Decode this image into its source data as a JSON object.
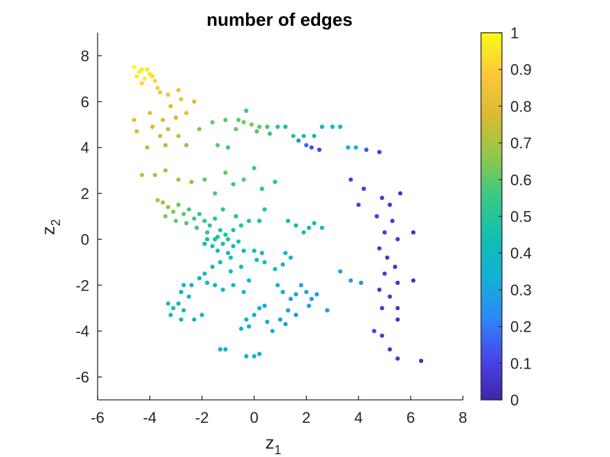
{
  "chart_data": {
    "type": "scatter",
    "title": "number of edges",
    "xlabel": {
      "main": "z",
      "sub": "1"
    },
    "ylabel": {
      "main": "z",
      "sub": "2"
    },
    "xlim": [
      -6,
      8
    ],
    "ylim": [
      -7,
      9
    ],
    "xticks": [
      -6,
      -4,
      -2,
      0,
      2,
      4,
      6,
      8
    ],
    "yticks": [
      -6,
      -4,
      -2,
      0,
      2,
      4,
      6,
      8
    ],
    "xtick_labels": [
      "-6",
      "-4",
      "-2",
      "0",
      "2",
      "4",
      "6",
      "8"
    ],
    "ytick_labels": [
      "-6",
      "-4",
      "-2",
      "0",
      "2",
      "4",
      "6",
      "8"
    ],
    "grid": false,
    "colorbar": {
      "colormap": "parula",
      "range": [
        0,
        1
      ],
      "ticks": [
        0,
        0.1,
        0.2,
        0.3,
        0.4,
        0.5,
        0.6,
        0.7,
        0.8,
        0.9,
        1
      ],
      "tick_labels": [
        "0",
        "0.1",
        "0.2",
        "0.3",
        "0.4",
        "0.5",
        "0.6",
        "0.7",
        "0.8",
        "0.9",
        "1"
      ],
      "stops": [
        "#3e26a8",
        "#4745e8",
        "#2e87f7",
        "#12b1d5",
        "#12bfb0",
        "#39c982",
        "#92c84a",
        "#dbba32",
        "#fcc938",
        "#f9fb15"
      ]
    },
    "points": [
      [
        -4.6,
        7.5,
        1.0
      ],
      [
        -4.4,
        7.3,
        0.99
      ],
      [
        -4.3,
        7.4,
        0.98
      ],
      [
        -4.2,
        7.0,
        0.97
      ],
      [
        -4.1,
        7.4,
        0.96
      ],
      [
        -4.0,
        7.2,
        0.95
      ],
      [
        -3.9,
        7.1,
        0.94
      ],
      [
        -4.5,
        7.1,
        0.97
      ],
      [
        -4.3,
        6.8,
        0.93
      ],
      [
        -3.8,
        6.9,
        0.92
      ],
      [
        -3.7,
        6.6,
        0.9
      ],
      [
        -3.6,
        6.4,
        0.87
      ],
      [
        -3.3,
        6.3,
        0.85
      ],
      [
        -2.9,
        6.5,
        0.84
      ],
      [
        -2.8,
        6.1,
        0.83
      ],
      [
        -3.2,
        5.8,
        0.8
      ],
      [
        -2.6,
        5.5,
        0.8
      ],
      [
        -2.3,
        6.0,
        0.8
      ],
      [
        -3.0,
        5.3,
        0.78
      ],
      [
        -3.5,
        5.2,
        0.77
      ],
      [
        -4.0,
        5.5,
        0.8
      ],
      [
        -4.6,
        5.2,
        0.8
      ],
      [
        -4.5,
        4.7,
        0.78
      ],
      [
        -3.9,
        4.9,
        0.77
      ],
      [
        -3.6,
        4.5,
        0.75
      ],
      [
        -3.3,
        4.8,
        0.74
      ],
      [
        -2.9,
        4.5,
        0.72
      ],
      [
        -4.1,
        4.0,
        0.73
      ],
      [
        -3.4,
        4.1,
        0.7
      ],
      [
        -2.6,
        4.1,
        0.66
      ],
      [
        -2.1,
        4.8,
        0.64
      ],
      [
        -1.6,
        5.1,
        0.62
      ],
      [
        -1.1,
        5.2,
        0.58
      ],
      [
        -1.4,
        4.1,
        0.6
      ],
      [
        -1.0,
        4.0,
        0.55
      ],
      [
        -0.6,
        5.2,
        0.6
      ],
      [
        -0.4,
        5.1,
        0.62
      ],
      [
        -0.1,
        5.0,
        0.64
      ],
      [
        0.2,
        4.9,
        0.6
      ],
      [
        0.5,
        4.9,
        0.56
      ],
      [
        0.9,
        4.9,
        0.5
      ],
      [
        1.2,
        4.9,
        0.46
      ],
      [
        -0.3,
        5.6,
        0.55
      ],
      [
        -0.7,
        4.8,
        0.62
      ],
      [
        0.1,
        4.7,
        0.58
      ],
      [
        0.6,
        4.6,
        0.55
      ],
      [
        1.5,
        4.5,
        0.5
      ],
      [
        1.9,
        4.5,
        0.46
      ],
      [
        2.3,
        4.5,
        0.44
      ],
      [
        2.6,
        4.9,
        0.4
      ],
      [
        3.0,
        4.9,
        0.4
      ],
      [
        3.3,
        4.9,
        0.4
      ],
      [
        1.7,
        4.3,
        0.22
      ],
      [
        2.0,
        4.1,
        0.17
      ],
      [
        2.2,
        4.0,
        0.13
      ],
      [
        2.5,
        3.9,
        0.1
      ],
      [
        3.6,
        4.0,
        0.38
      ],
      [
        3.9,
        4.0,
        0.36
      ],
      [
        4.3,
        3.9,
        0.14
      ],
      [
        4.8,
        3.8,
        0.08
      ],
      [
        -4.3,
        2.8,
        0.74
      ],
      [
        -3.8,
        2.8,
        0.7
      ],
      [
        -3.4,
        3.0,
        0.68
      ],
      [
        -2.9,
        2.6,
        0.68
      ],
      [
        -2.4,
        2.5,
        0.66
      ],
      [
        -1.9,
        2.6,
        0.6
      ],
      [
        -1.5,
        2.0,
        0.58
      ],
      [
        -1.1,
        2.9,
        0.6
      ],
      [
        -0.8,
        2.4,
        0.56
      ],
      [
        -0.4,
        2.6,
        0.58
      ],
      [
        0.0,
        3.1,
        0.54
      ],
      [
        0.3,
        2.2,
        0.52
      ],
      [
        0.8,
        2.5,
        0.5
      ],
      [
        0.4,
        1.3,
        0.48
      ],
      [
        0.2,
        0.8,
        0.46
      ],
      [
        -3.7,
        1.7,
        0.7
      ],
      [
        -3.5,
        1.6,
        0.68
      ],
      [
        -3.3,
        1.4,
        0.66
      ],
      [
        -3.1,
        1.2,
        0.64
      ],
      [
        -2.9,
        1.5,
        0.62
      ],
      [
        -2.7,
        1.1,
        0.6
      ],
      [
        -2.5,
        1.3,
        0.58
      ],
      [
        -2.3,
        0.9,
        0.56
      ],
      [
        -2.1,
        1.1,
        0.54
      ],
      [
        -1.9,
        0.8,
        0.52
      ],
      [
        -1.7,
        0.6,
        0.5
      ],
      [
        -1.5,
        0.9,
        0.5
      ],
      [
        -1.3,
        0.4,
        0.48
      ],
      [
        -3.4,
        1.0,
        0.65
      ],
      [
        -3.0,
        0.8,
        0.62
      ],
      [
        -2.6,
        0.7,
        0.6
      ],
      [
        -2.2,
        0.5,
        0.56
      ],
      [
        -1.8,
        0.3,
        0.52
      ],
      [
        -1.4,
        0.1,
        0.48
      ],
      [
        -1.0,
        0.0,
        0.46
      ],
      [
        -0.8,
        0.4,
        0.48
      ],
      [
        -0.5,
        0.6,
        0.48
      ],
      [
        -0.2,
        0.8,
        0.47
      ],
      [
        -0.7,
        1.0,
        0.5
      ],
      [
        -1.2,
        1.3,
        0.52
      ],
      [
        -1.8,
        0.0,
        0.45
      ],
      [
        -1.6,
        -0.3,
        0.44
      ],
      [
        -1.4,
        -0.5,
        0.43
      ],
      [
        -1.2,
        -0.2,
        0.44
      ],
      [
        -1.0,
        -0.6,
        0.43
      ],
      [
        -0.8,
        -0.3,
        0.44
      ],
      [
        -0.6,
        -0.1,
        0.45
      ],
      [
        -1.1,
        0.2,
        0.45
      ],
      [
        -1.5,
        0.0,
        0.45
      ],
      [
        -1.9,
        -0.2,
        0.44
      ],
      [
        -0.4,
        -0.5,
        0.44
      ],
      [
        -0.9,
        -0.8,
        0.43
      ],
      [
        -1.3,
        -1.0,
        0.42
      ],
      [
        -1.6,
        -1.2,
        0.42
      ],
      [
        -1.9,
        -1.5,
        0.41
      ],
      [
        -2.1,
        -1.7,
        0.4
      ],
      [
        -1.8,
        -1.9,
        0.4
      ],
      [
        -2.4,
        -2.0,
        0.38
      ],
      [
        -2.7,
        -2.0,
        0.37
      ],
      [
        -2.8,
        -2.3,
        0.36
      ],
      [
        -2.5,
        -2.5,
        0.36
      ],
      [
        -3.3,
        -2.8,
        0.42
      ],
      [
        -3.1,
        -3.0,
        0.43
      ],
      [
        -2.9,
        -2.8,
        0.42
      ],
      [
        -2.7,
        -3.1,
        0.43
      ],
      [
        -3.2,
        -3.3,
        0.42
      ],
      [
        -2.8,
        -3.5,
        0.4
      ],
      [
        -2.3,
        -3.5,
        0.38
      ],
      [
        -2.0,
        -3.3,
        0.37
      ],
      [
        -1.3,
        -4.8,
        0.36
      ],
      [
        -1.1,
        -4.8,
        0.35
      ],
      [
        -0.3,
        -5.1,
        0.34
      ],
      [
        0.0,
        -5.1,
        0.35
      ],
      [
        0.2,
        -5.0,
        0.33
      ],
      [
        -0.5,
        -3.9,
        0.34
      ],
      [
        -0.3,
        -3.5,
        0.33
      ],
      [
        0.0,
        -3.3,
        0.32
      ],
      [
        0.2,
        -3.0,
        0.33
      ],
      [
        0.4,
        -2.9,
        0.32
      ],
      [
        -0.2,
        -3.8,
        0.33
      ],
      [
        -1.5,
        -2.0,
        0.38
      ],
      [
        -1.2,
        -2.2,
        0.37
      ],
      [
        -0.8,
        -2.0,
        0.36
      ],
      [
        -0.4,
        -2.3,
        0.37
      ],
      [
        -0.2,
        -1.8,
        0.38
      ],
      [
        -0.9,
        -1.4,
        0.4
      ],
      [
        -0.5,
        -1.2,
        0.41
      ],
      [
        0.0,
        -0.5,
        0.43
      ],
      [
        0.1,
        -0.9,
        0.42
      ],
      [
        0.3,
        -0.6,
        0.43
      ],
      [
        0.4,
        -1.0,
        0.42
      ],
      [
        0.8,
        -1.3,
        0.41
      ],
      [
        1.1,
        -1.1,
        0.4
      ],
      [
        1.2,
        -0.6,
        0.42
      ],
      [
        1.4,
        -0.8,
        0.41
      ],
      [
        0.9,
        -2.0,
        0.34
      ],
      [
        1.1,
        -2.3,
        0.33
      ],
      [
        1.4,
        -2.6,
        0.3
      ],
      [
        1.6,
        -2.4,
        0.29
      ],
      [
        1.3,
        -3.1,
        0.28
      ],
      [
        1.0,
        -3.5,
        0.3
      ],
      [
        1.2,
        -3.7,
        0.29
      ],
      [
        1.6,
        -3.3,
        0.28
      ],
      [
        0.5,
        -3.6,
        0.31
      ],
      [
        0.7,
        -4.0,
        0.32
      ],
      [
        1.8,
        -2.0,
        0.3
      ],
      [
        2.0,
        -2.3,
        0.3
      ],
      [
        2.2,
        -2.6,
        0.29
      ],
      [
        2.4,
        -2.4,
        0.28
      ],
      [
        2.1,
        -2.9,
        0.29
      ],
      [
        2.8,
        -3.1,
        0.27
      ],
      [
        3.3,
        -1.4,
        0.3
      ],
      [
        3.7,
        -1.8,
        0.26
      ],
      [
        4.1,
        -1.9,
        0.24
      ],
      [
        1.3,
        0.8,
        0.44
      ],
      [
        1.6,
        0.6,
        0.43
      ],
      [
        1.9,
        0.3,
        0.44
      ],
      [
        2.1,
        0.5,
        0.43
      ],
      [
        2.3,
        0.7,
        0.44
      ],
      [
        2.6,
        0.5,
        0.43
      ],
      [
        4.0,
        1.5,
        0.1
      ],
      [
        3.7,
        2.6,
        0.09
      ],
      [
        4.2,
        2.2,
        0.09
      ],
      [
        4.9,
        1.8,
        0.08
      ],
      [
        5.2,
        1.5,
        0.07
      ],
      [
        5.6,
        2.0,
        0.06
      ],
      [
        4.7,
        1.0,
        0.08
      ],
      [
        5.3,
        0.8,
        0.07
      ],
      [
        5.0,
        0.3,
        0.08
      ],
      [
        5.5,
        0.0,
        0.07
      ],
      [
        6.1,
        0.3,
        0.05
      ],
      [
        4.8,
        -0.4,
        0.08
      ],
      [
        5.1,
        -0.8,
        0.07
      ],
      [
        5.4,
        -1.2,
        0.07
      ],
      [
        5.0,
        -1.5,
        0.08
      ],
      [
        5.5,
        -1.9,
        0.06
      ],
      [
        6.1,
        -1.8,
        0.05
      ],
      [
        4.8,
        -2.2,
        0.08
      ],
      [
        5.2,
        -2.5,
        0.07
      ],
      [
        5.5,
        -3.0,
        0.06
      ],
      [
        4.9,
        -3.0,
        0.08
      ],
      [
        5.5,
        -3.5,
        0.06
      ],
      [
        4.6,
        -4.0,
        0.09
      ],
      [
        4.9,
        -4.2,
        0.08
      ],
      [
        5.2,
        -4.8,
        0.07
      ],
      [
        5.5,
        -5.2,
        0.06
      ],
      [
        6.4,
        -5.3,
        0.05
      ]
    ]
  }
}
